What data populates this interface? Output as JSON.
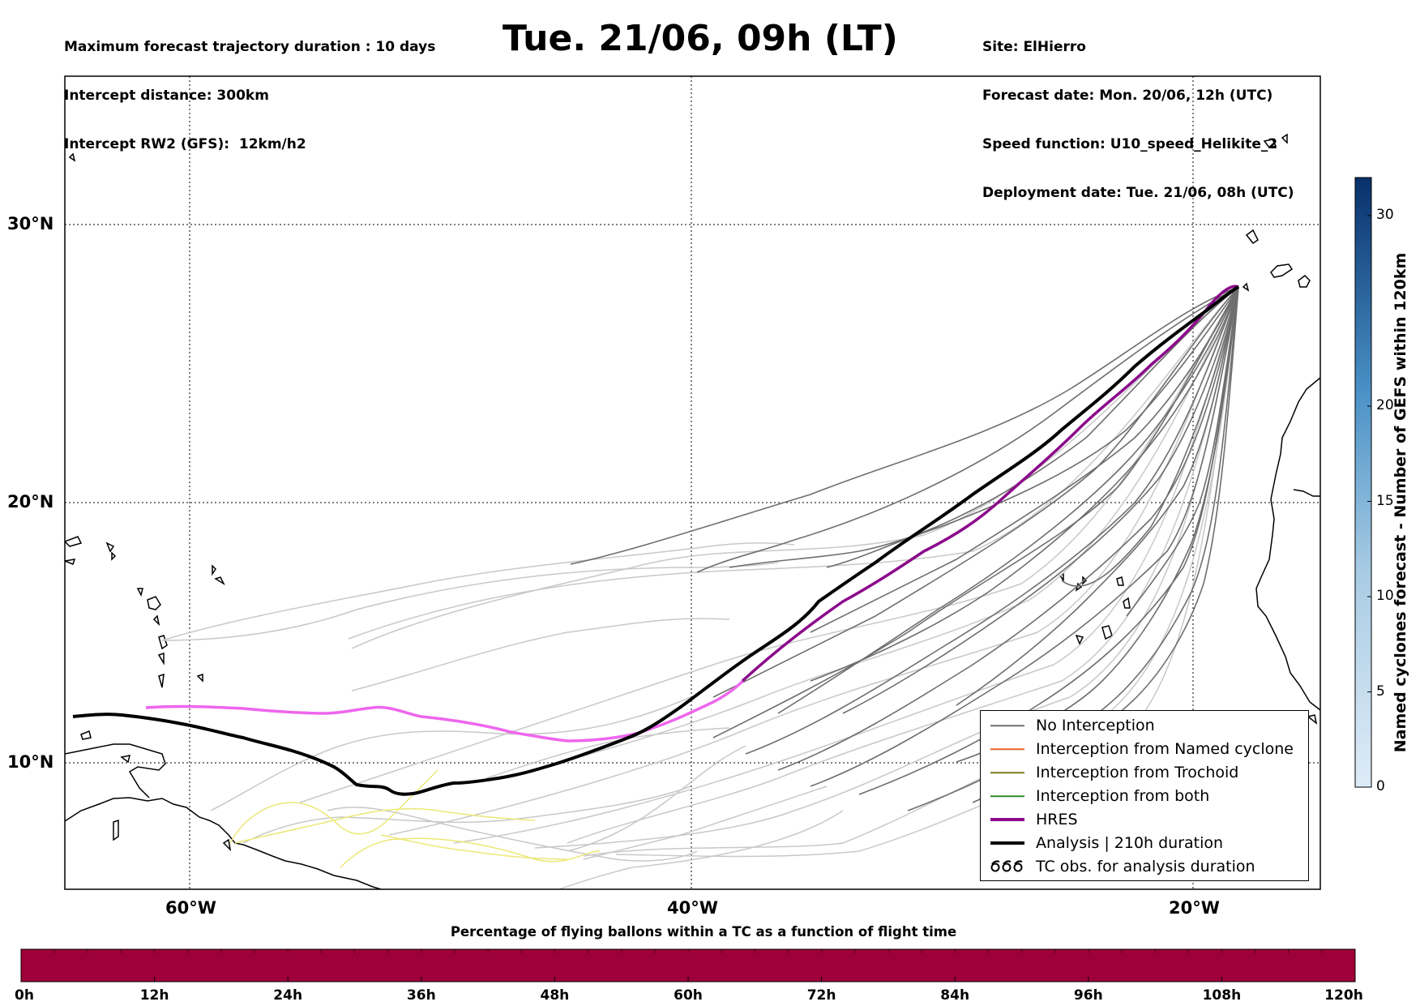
{
  "header": {
    "left_lines": [
      "Maximum forecast trajectory duration : 10 days",
      "Intercept distance: 300km",
      "Intercept RW2 (GFS):  12km/h2"
    ],
    "title": "Tue. 21/06, 09h (LT)",
    "right_lines": [
      "Site: ElHierro",
      "Forecast date: Mon. 20/06, 12h (UTC)",
      "Speed function: U10_speed_Helikite_2",
      "Deployment date: Tue. 21/06, 08h (UTC)"
    ]
  },
  "map": {
    "lon_range": [
      -65,
      15
    ],
    "lat_range": [
      5.3,
      34.6
    ],
    "lon_ticks": [
      "60°W",
      "40°W",
      "20°W"
    ],
    "lat_ticks": [
      "30°N",
      "20°N",
      "10°N"
    ],
    "grid": "dotted",
    "site_position_lon_lat": [
      -17.7,
      27.6
    ],
    "colors": {
      "no_interception": "#6e6e6e",
      "no_interception_light": "#c8c8c8",
      "named_cyclone": "#e8622a",
      "trochoid": "#7a7a1a",
      "both": "#2e8b2e",
      "hres": "#8b0a8b",
      "hres_light": "#ee66ee",
      "analysis": "#000000",
      "yellow_tracks": "#ece878"
    }
  },
  "legend": {
    "placement": "lower-right",
    "items": [
      {
        "label": "No Interception",
        "color": "#6e6e6e",
        "style": "thin"
      },
      {
        "label": "Interception from Named cyclone",
        "color": "#e8622a",
        "style": "thin"
      },
      {
        "label": "Interception from Trochoid",
        "color": "#7a7a1a",
        "style": "thin"
      },
      {
        "label": "Interception from both",
        "color": "#2e8b2e",
        "style": "thin"
      },
      {
        "label": "HRES",
        "color": "#8b0a8b",
        "style": "thick"
      },
      {
        "label": "Analysis | 210h duration",
        "color": "#000000",
        "style": "thick"
      },
      {
        "label": "TC obs. for analysis duration",
        "color": "#000000",
        "style": "symbol",
        "symbol": "஦஦஦"
      }
    ]
  },
  "colorbar": {
    "label": "Named cyclones forecast - Number of GEFS within 120km",
    "ticks": [
      "0",
      "5",
      "10",
      "15",
      "20",
      "30"
    ],
    "tick_values": [
      0,
      5,
      10,
      15,
      20,
      30
    ],
    "range": [
      0,
      32
    ],
    "color_low": "#deebf7",
    "color_high": "#08306b"
  },
  "timebar": {
    "title": "Percentage of flying ballons within a TC as a function of flight time",
    "ticks": [
      "0h",
      "12h",
      "24h",
      "36h",
      "48h",
      "60h",
      "72h",
      "84h",
      "96h",
      "108h",
      "120h"
    ],
    "fill_color": "#9e0039"
  }
}
